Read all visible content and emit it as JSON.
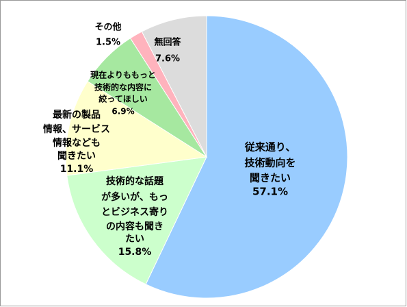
{
  "chart_data": {
    "type": "pie",
    "categories": [
      [
        "従来通り、",
        "技術動向を",
        "聞きたい"
      ],
      [
        "技術的な話題",
        "が多いが、もっ",
        "とビジネス寄り",
        "の内容も聞き",
        "たい"
      ],
      [
        "最新の製品",
        "情報、サービス",
        "情報なども",
        "聞きたい"
      ],
      [
        "現在よりももっと",
        "技術的な内容に",
        "絞ってほしい"
      ],
      [
        "その他"
      ],
      [
        "無回答"
      ]
    ],
    "values": [
      57.1,
      15.8,
      11.1,
      6.9,
      1.5,
      7.6
    ],
    "value_labels": [
      "57.1%",
      "15.8%",
      "11.1%",
      "6.9%",
      "1.5%",
      "7.6%"
    ],
    "colors": [
      "#99ccff",
      "#ccffcc",
      "#ffffcc",
      "#a6e8a0",
      "#ffb3bd",
      "#dcdcdc"
    ]
  }
}
